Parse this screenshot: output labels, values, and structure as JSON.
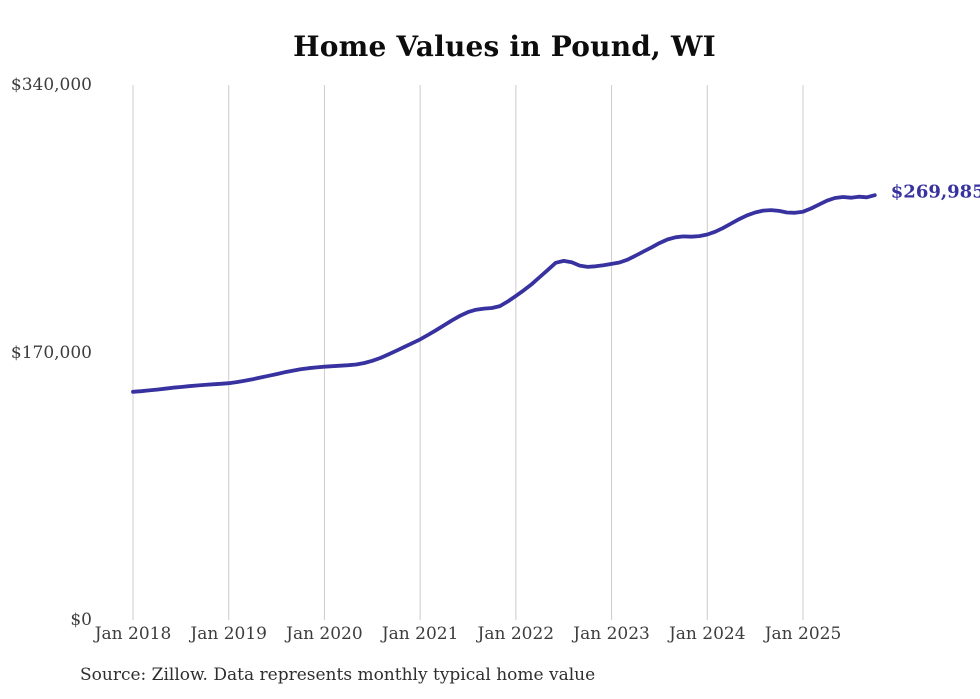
{
  "title": "Home Values in Pound, WI",
  "source_note": "Source: Zillow. Data represents monthly typical home value",
  "colors": {
    "line": "#37329f",
    "annotation": "#37329f",
    "grid": "#cccccc",
    "title_text": "#0d0d0d",
    "axis_text": "#3d3d3d",
    "source_text": "#2e2e2e",
    "background": "#ffffff"
  },
  "chart_data": {
    "type": "line",
    "title": "Home Values in Pound, WI",
    "unit": "USD",
    "x_start": "Jan 2018",
    "x_end": "Oct 2025",
    "points_per_year": 12,
    "grid": "vertical-only",
    "legend": "none",
    "ylim": [
      0,
      340000
    ],
    "x_ticks": [
      "Jan 2018",
      "Jan 2019",
      "Jan 2020",
      "Jan 2021",
      "Jan 2022",
      "Jan 2023",
      "Jan 2024",
      "Jan 2025"
    ],
    "y_ticks": [
      {
        "label": "$0",
        "value": 0
      },
      {
        "label": "$170,000",
        "value": 170000
      },
      {
        "label": "$340,000",
        "value": 340000
      }
    ],
    "latest_value": 269985,
    "latest_value_label": "$269,985",
    "series": [
      {
        "name": "Monthly typical home value",
        "values": [
          145000,
          145400,
          145900,
          146400,
          147000,
          147600,
          148100,
          148600,
          149000,
          149400,
          149800,
          150100,
          150500,
          151200,
          152000,
          153000,
          154100,
          155200,
          156300,
          157400,
          158400,
          159300,
          160000,
          160500,
          161000,
          161300,
          161600,
          161900,
          162400,
          163300,
          164700,
          166500,
          168700,
          171100,
          173500,
          175900,
          178300,
          181200,
          184200,
          187300,
          190400,
          193300,
          195700,
          197200,
          197900,
          198300,
          199500,
          202500,
          206000,
          209500,
          213500,
          218000,
          222500,
          227000,
          228200,
          227400,
          225200,
          224400,
          224800,
          225400,
          226300,
          227200,
          229000,
          231500,
          234200,
          236800,
          239500,
          241800,
          243200,
          243800,
          243600,
          244000,
          245000,
          246800,
          249200,
          252000,
          254800,
          257200,
          259000,
          260200,
          260500,
          260000,
          259000,
          258800,
          259500,
          261500,
          264000,
          266500,
          268200,
          268800,
          268400,
          269000,
          268600,
          269985
        ]
      }
    ]
  }
}
